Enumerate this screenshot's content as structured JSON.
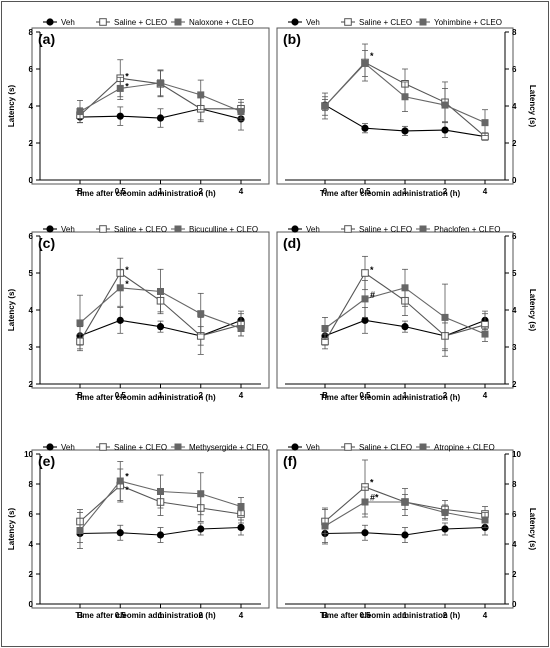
{
  "figure": {
    "colors": {
      "veh": "#000000",
      "saline": "#555555",
      "drug": "#666666",
      "frame": "#555555"
    }
  },
  "chart_data": [
    {
      "panel": "(a)",
      "type": "line",
      "categories": [
        "B",
        "0.5",
        "1",
        "2",
        "4"
      ],
      "xlabel": "Time after cleomin administration (h)",
      "ylabel": "Latency (s)",
      "ylim": [
        0,
        8
      ],
      "yticks": [
        0,
        2,
        4,
        6,
        8
      ],
      "yaxis_side": "left",
      "legend_position": "top",
      "series": [
        {
          "name": "Veh",
          "marker": "filled-circle",
          "values": [
            3.4,
            3.45,
            3.35,
            3.85,
            3.3
          ],
          "errors": [
            0.3,
            0.5,
            0.5,
            0.6,
            0.6
          ]
        },
        {
          "name": "Saline + CLEO",
          "marker": "open-square",
          "values": [
            3.5,
            5.5,
            5.2,
            3.85,
            3.85
          ],
          "errors": [
            0.4,
            1.0,
            0.7,
            0.7,
            0.5
          ]
        },
        {
          "name": "Naloxone + CLEO",
          "marker": "filled-square",
          "values": [
            3.7,
            4.95,
            5.25,
            4.6,
            3.7
          ],
          "errors": [
            0.6,
            0.6,
            0.7,
            0.8,
            0.5
          ]
        }
      ],
      "annotations": [
        {
          "text": "*",
          "x": "0.5",
          "y": 5.6
        },
        {
          "text": "*",
          "x": "0.5",
          "y": 5.05
        }
      ]
    },
    {
      "panel": "(b)",
      "type": "line",
      "categories": [
        "0",
        "0.5",
        "1",
        "2",
        "4"
      ],
      "xlabel": "Time after cleomin administration (h)",
      "ylabel": "Latency (s)",
      "ylim": [
        0,
        8
      ],
      "yticks": [
        0,
        2,
        4,
        6,
        8
      ],
      "yaxis_side": "right",
      "legend_position": "top",
      "series": [
        {
          "name": "Veh",
          "marker": "filled-circle",
          "values": [
            4.05,
            2.8,
            2.65,
            2.7,
            2.35
          ],
          "errors": [
            0.3,
            0.25,
            0.25,
            0.4,
            0.2
          ]
        },
        {
          "name": "Saline + CLEO",
          "marker": "open-square",
          "values": [
            4.0,
            6.35,
            5.2,
            4.2,
            2.35
          ],
          "errors": [
            0.7,
            1.0,
            0.8,
            1.1,
            0.2
          ]
        },
        {
          "name": "Yohimbine + CLEO",
          "marker": "filled-square",
          "values": [
            4.0,
            6.3,
            4.5,
            4.05,
            3.1
          ],
          "errors": [
            0.5,
            0.7,
            0.8,
            0.9,
            0.7
          ]
        }
      ],
      "annotations": [
        {
          "text": "*",
          "x": "0.5",
          "y": 6.7
        }
      ]
    },
    {
      "panel": "(c)",
      "type": "line",
      "categories": [
        "B",
        "0.5",
        "1",
        "2",
        "4"
      ],
      "xlabel": "Time after cleomin administration (h)",
      "ylabel": "Latency (s)",
      "ylim": [
        2,
        6
      ],
      "yticks": [
        2,
        3,
        4,
        5,
        6
      ],
      "yaxis_side": "left",
      "legend_position": "top",
      "series": [
        {
          "name": "Veh",
          "marker": "filled-circle",
          "values": [
            3.3,
            3.72,
            3.55,
            3.3,
            3.72
          ],
          "errors": [
            0.25,
            0.35,
            0.15,
            0.25,
            0.25
          ]
        },
        {
          "name": "Saline + CLEO",
          "marker": "open-square",
          "values": [
            3.15,
            5.0,
            4.25,
            3.3,
            3.6
          ],
          "errors": [
            0.2,
            0.4,
            0.3,
            0.5,
            0.3
          ]
        },
        {
          "name": "Bicuculline + CLEO",
          "marker": "filled-square",
          "values": [
            3.65,
            4.6,
            4.5,
            3.9,
            3.5
          ],
          "errors": [
            0.75,
            0.5,
            0.6,
            0.55,
            0.2
          ]
        }
      ],
      "annotations": [
        {
          "text": "*",
          "x": "0.5",
          "y": 5.08
        },
        {
          "text": "*",
          "x": "0.5",
          "y": 4.7
        }
      ]
    },
    {
      "panel": "(d)",
      "type": "line",
      "categories": [
        "B",
        "0.5",
        "1",
        "2",
        "4"
      ],
      "xlabel": "Time after cleomin administration (h)",
      "ylabel": "Latency (s)",
      "ylim": [
        2,
        6
      ],
      "yticks": [
        2,
        3,
        4,
        5,
        6
      ],
      "yaxis_side": "right",
      "legend_position": "top",
      "series": [
        {
          "name": "Veh",
          "marker": "filled-circle",
          "values": [
            3.3,
            3.72,
            3.55,
            3.3,
            3.72
          ],
          "errors": [
            0.25,
            0.35,
            0.15,
            0.35,
            0.25
          ]
        },
        {
          "name": "Saline + CLEO",
          "marker": "open-square",
          "values": [
            3.15,
            5.0,
            4.25,
            3.3,
            3.6
          ],
          "errors": [
            0.2,
            0.45,
            0.4,
            0.55,
            0.3
          ]
        },
        {
          "name": "Phaclofen + CLEO",
          "marker": "filled-square",
          "values": [
            3.5,
            4.3,
            4.6,
            3.8,
            3.35
          ],
          "errors": [
            0.3,
            0.5,
            0.5,
            0.9,
            0.2
          ]
        }
      ],
      "annotations": [
        {
          "text": "*",
          "x": "0.5",
          "y": 5.08
        },
        {
          "text": "#",
          "x": "0.5",
          "y": 4.4
        }
      ]
    },
    {
      "panel": "(e)",
      "type": "line",
      "categories": [
        "B",
        "0.5",
        "1",
        "2",
        "4"
      ],
      "xlabel": "Time after cleomin administration (h)",
      "ylabel": "Latency (s)",
      "ylim": [
        0,
        10
      ],
      "yticks": [
        0,
        2,
        4,
        6,
        8,
        10
      ],
      "yaxis_side": "left",
      "legend_position": "top",
      "series": [
        {
          "name": "Veh",
          "marker": "filled-circle",
          "values": [
            4.7,
            4.75,
            4.6,
            5.0,
            5.1
          ],
          "errors": [
            0.6,
            0.5,
            0.5,
            0.4,
            0.5
          ]
        },
        {
          "name": "Saline + CLEO",
          "marker": "open-square",
          "values": [
            5.5,
            7.9,
            6.8,
            6.4,
            6.0
          ],
          "errors": [
            0.8,
            1.1,
            0.9,
            0.9,
            0.6
          ]
        },
        {
          "name": "Methysergide + CLEO",
          "marker": "filled-square",
          "values": [
            4.9,
            8.2,
            7.5,
            7.35,
            6.5
          ],
          "errors": [
            1.2,
            1.3,
            1.1,
            1.4,
            0.6
          ]
        }
      ],
      "annotations": [
        {
          "text": "*",
          "x": "0.5",
          "y": 8.5
        },
        {
          "text": "*",
          "x": "0.5",
          "y": 7.6
        }
      ]
    },
    {
      "panel": "(f)",
      "type": "line",
      "categories": [
        "B",
        "0.5",
        "1",
        "2",
        "4"
      ],
      "xlabel": "Time after cleomin administration (h)",
      "ylabel": "Latency (s)",
      "ylim": [
        0,
        10
      ],
      "yticks": [
        0,
        2,
        4,
        6,
        8,
        10
      ],
      "yaxis_side": "right",
      "legend_position": "top",
      "series": [
        {
          "name": "Veh",
          "marker": "filled-circle",
          "values": [
            4.7,
            4.75,
            4.6,
            5.0,
            5.1
          ],
          "errors": [
            0.6,
            0.5,
            0.5,
            0.4,
            0.5
          ]
        },
        {
          "name": "Saline + CLEO",
          "marker": "open-square",
          "values": [
            5.5,
            7.8,
            6.8,
            6.3,
            6.0
          ],
          "errors": [
            0.8,
            1.8,
            0.9,
            0.6,
            0.5
          ]
        },
        {
          "name": "Atropine + CLEO",
          "marker": "filled-square",
          "values": [
            5.2,
            6.8,
            6.8,
            6.1,
            5.6
          ],
          "errors": [
            1.2,
            1.0,
            0.5,
            0.5,
            0.5
          ]
        }
      ],
      "annotations": [
        {
          "text": "*",
          "x": "0.5",
          "y": 8.1
        },
        {
          "text": "#*",
          "x": "0.5",
          "y": 7.1
        }
      ]
    }
  ]
}
